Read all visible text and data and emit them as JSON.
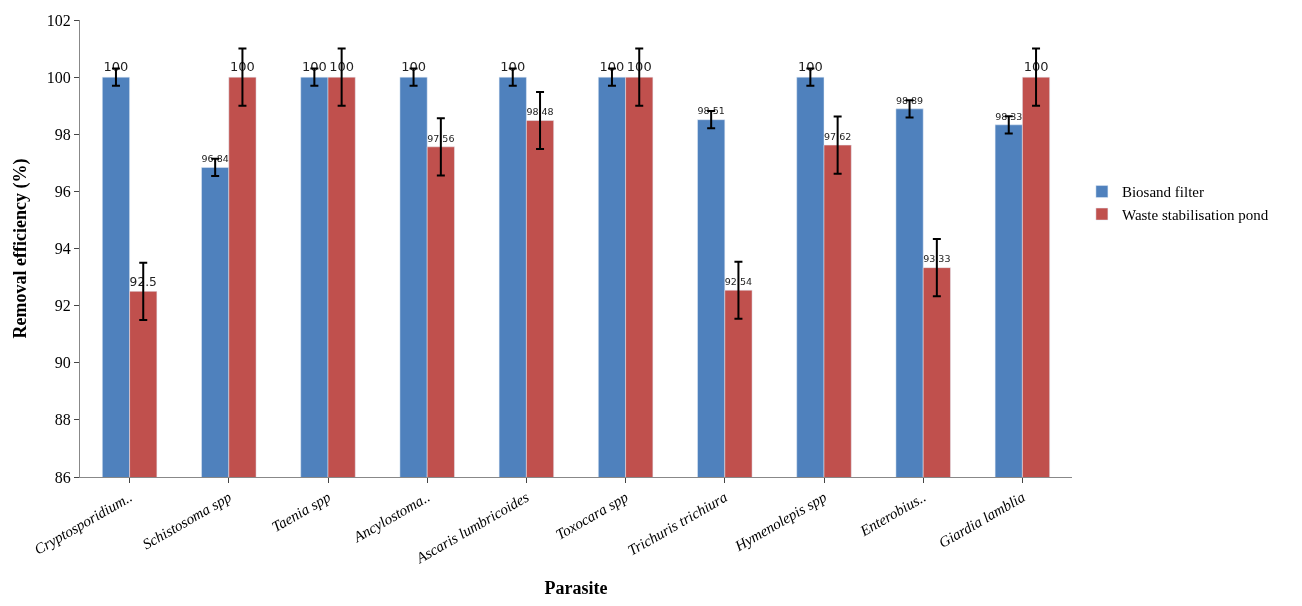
{
  "chart_data": {
    "type": "bar",
    "xlabel": "Parasite",
    "ylabel": "Removal efficiency (%)",
    "categories": [
      "Cryptosporidium..",
      "Schistosoma spp",
      "Taenia spp",
      "Ancylostoma..",
      "Ascaris lumbricoides",
      "Toxocara spp",
      "Trichuris trichiura",
      "Hymenolepis spp",
      "Enterobius..",
      "Giardia lamblia"
    ],
    "series": [
      {
        "name": "Biosand filter",
        "color": "#4f81bd",
        "values": [
          100,
          96.84,
          100,
          100,
          100,
          100,
          98.51,
          100,
          98.89,
          98.33
        ],
        "errors": [
          0.3,
          0.3,
          0.3,
          0.3,
          0.3,
          0.3,
          0.3,
          0.3,
          0.3,
          0.3
        ]
      },
      {
        "name": "Waste stabilisation pond",
        "color": "#c0504d",
        "values": [
          92.5,
          100,
          100,
          97.56,
          98.48,
          100,
          92.54,
          97.62,
          93.33,
          100
        ],
        "errors": [
          1,
          1,
          1,
          1,
          1,
          1,
          1,
          1,
          1,
          1
        ]
      }
    ],
    "ylim": [
      86,
      102
    ],
    "yticks": [
      86,
      88,
      90,
      92,
      94,
      96,
      98,
      100,
      102
    ],
    "data_labels": true,
    "legend": "right",
    "grid": false
  }
}
